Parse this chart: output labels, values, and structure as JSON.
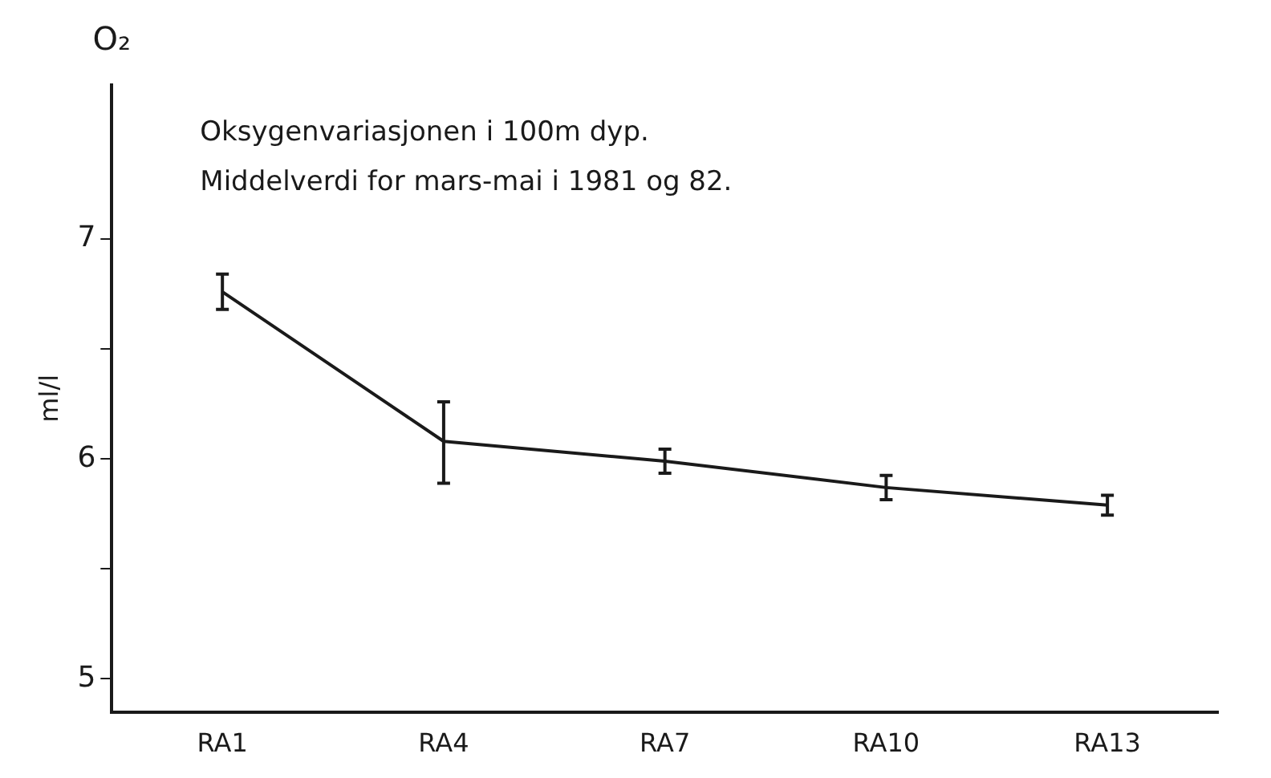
{
  "chart_data": {
    "type": "line",
    "title": "Oksygenvariasjonen i 100m dyp.",
    "subtitle": "Middelverdi for mars-mai i 1981 og 82.",
    "ylabel": "ml/l",
    "annotations": [
      "O₂"
    ],
    "categories": [
      "RA1",
      "RA4",
      "RA7",
      "RA10",
      "RA13"
    ],
    "series": [
      {
        "color": "#1a1a1a",
        "values": [
          6.76,
          6.08,
          5.99,
          5.87,
          5.79
        ],
        "errors": [
          0.08,
          [
            5.89,
            6.26
          ],
          0.055,
          0.055,
          0.045
        ]
      }
    ],
    "ylim": [
      4.85,
      7.7
    ],
    "yticks": [
      5,
      {
        "value": 5.5,
        "label": null
      },
      6,
      {
        "value": 6.5,
        "label": null
      },
      7
    ],
    "grid": false,
    "legend": false,
    "marker": "none",
    "line_style": "solid"
  }
}
